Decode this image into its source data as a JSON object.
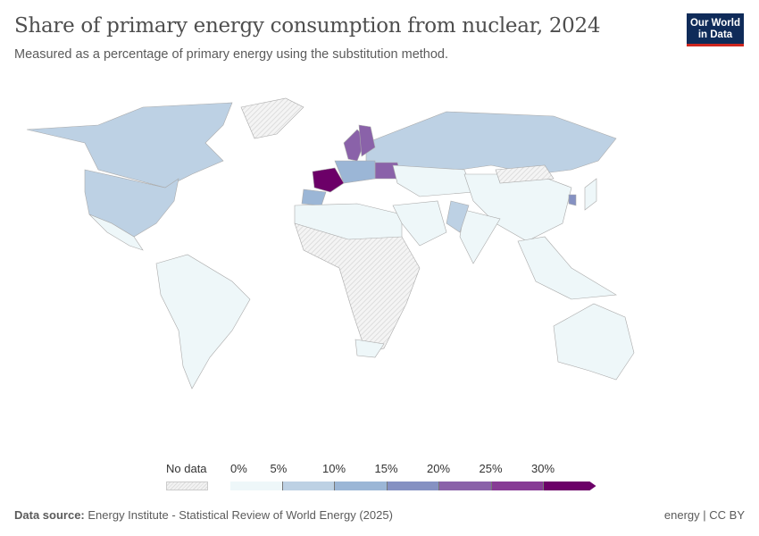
{
  "header": {
    "title": "Share of primary energy consumption from nuclear, 2024",
    "subtitle": "Measured as a percentage of primary energy using the substitution method.",
    "logo_text": "Our World in Data"
  },
  "legend": {
    "no_data_label": "No data",
    "ticks": [
      "0%",
      "5%",
      "10%",
      "15%",
      "20%",
      "25%",
      "30%"
    ],
    "bins": [
      "#eef7f9",
      "#bdd1e4",
      "#9bb6d6",
      "#8591c2",
      "#8a62a9",
      "#873b95",
      "#6c0068"
    ],
    "no_data_color": "#e8e8e8"
  },
  "map": {
    "regions": [
      {
        "name": "Canada",
        "bin": 1
      },
      {
        "name": "United States",
        "bin": 1
      },
      {
        "name": "Mexico",
        "bin": 0
      },
      {
        "name": "South America",
        "bin": 0
      },
      {
        "name": "Greenland",
        "bin": -1
      },
      {
        "name": "Russia",
        "bin": 1
      },
      {
        "name": "France",
        "bin": 6
      },
      {
        "name": "Sweden",
        "bin": 4
      },
      {
        "name": "Finland",
        "bin": 4
      },
      {
        "name": "Ukraine",
        "bin": 4
      },
      {
        "name": "Spain",
        "bin": 2
      },
      {
        "name": "Central Europe",
        "bin": 2
      },
      {
        "name": "Central Asia",
        "bin": 0
      },
      {
        "name": "China",
        "bin": 0
      },
      {
        "name": "India",
        "bin": 0
      },
      {
        "name": "Pakistan",
        "bin": 1
      },
      {
        "name": "South Korea",
        "bin": 3
      },
      {
        "name": "Japan",
        "bin": 0
      },
      {
        "name": "Africa",
        "bin": -1
      },
      {
        "name": "North Africa",
        "bin": 0
      },
      {
        "name": "South Africa",
        "bin": 0
      },
      {
        "name": "Middle East",
        "bin": 0
      },
      {
        "name": "Australia",
        "bin": 0
      },
      {
        "name": "Southeast Asia",
        "bin": 0
      },
      {
        "name": "Mongolia",
        "bin": -1
      }
    ]
  },
  "footer": {
    "source_label": "Data source:",
    "source": "Energy Institute - Statistical Review of World Energy (2025)",
    "right": "energy | CC BY"
  }
}
